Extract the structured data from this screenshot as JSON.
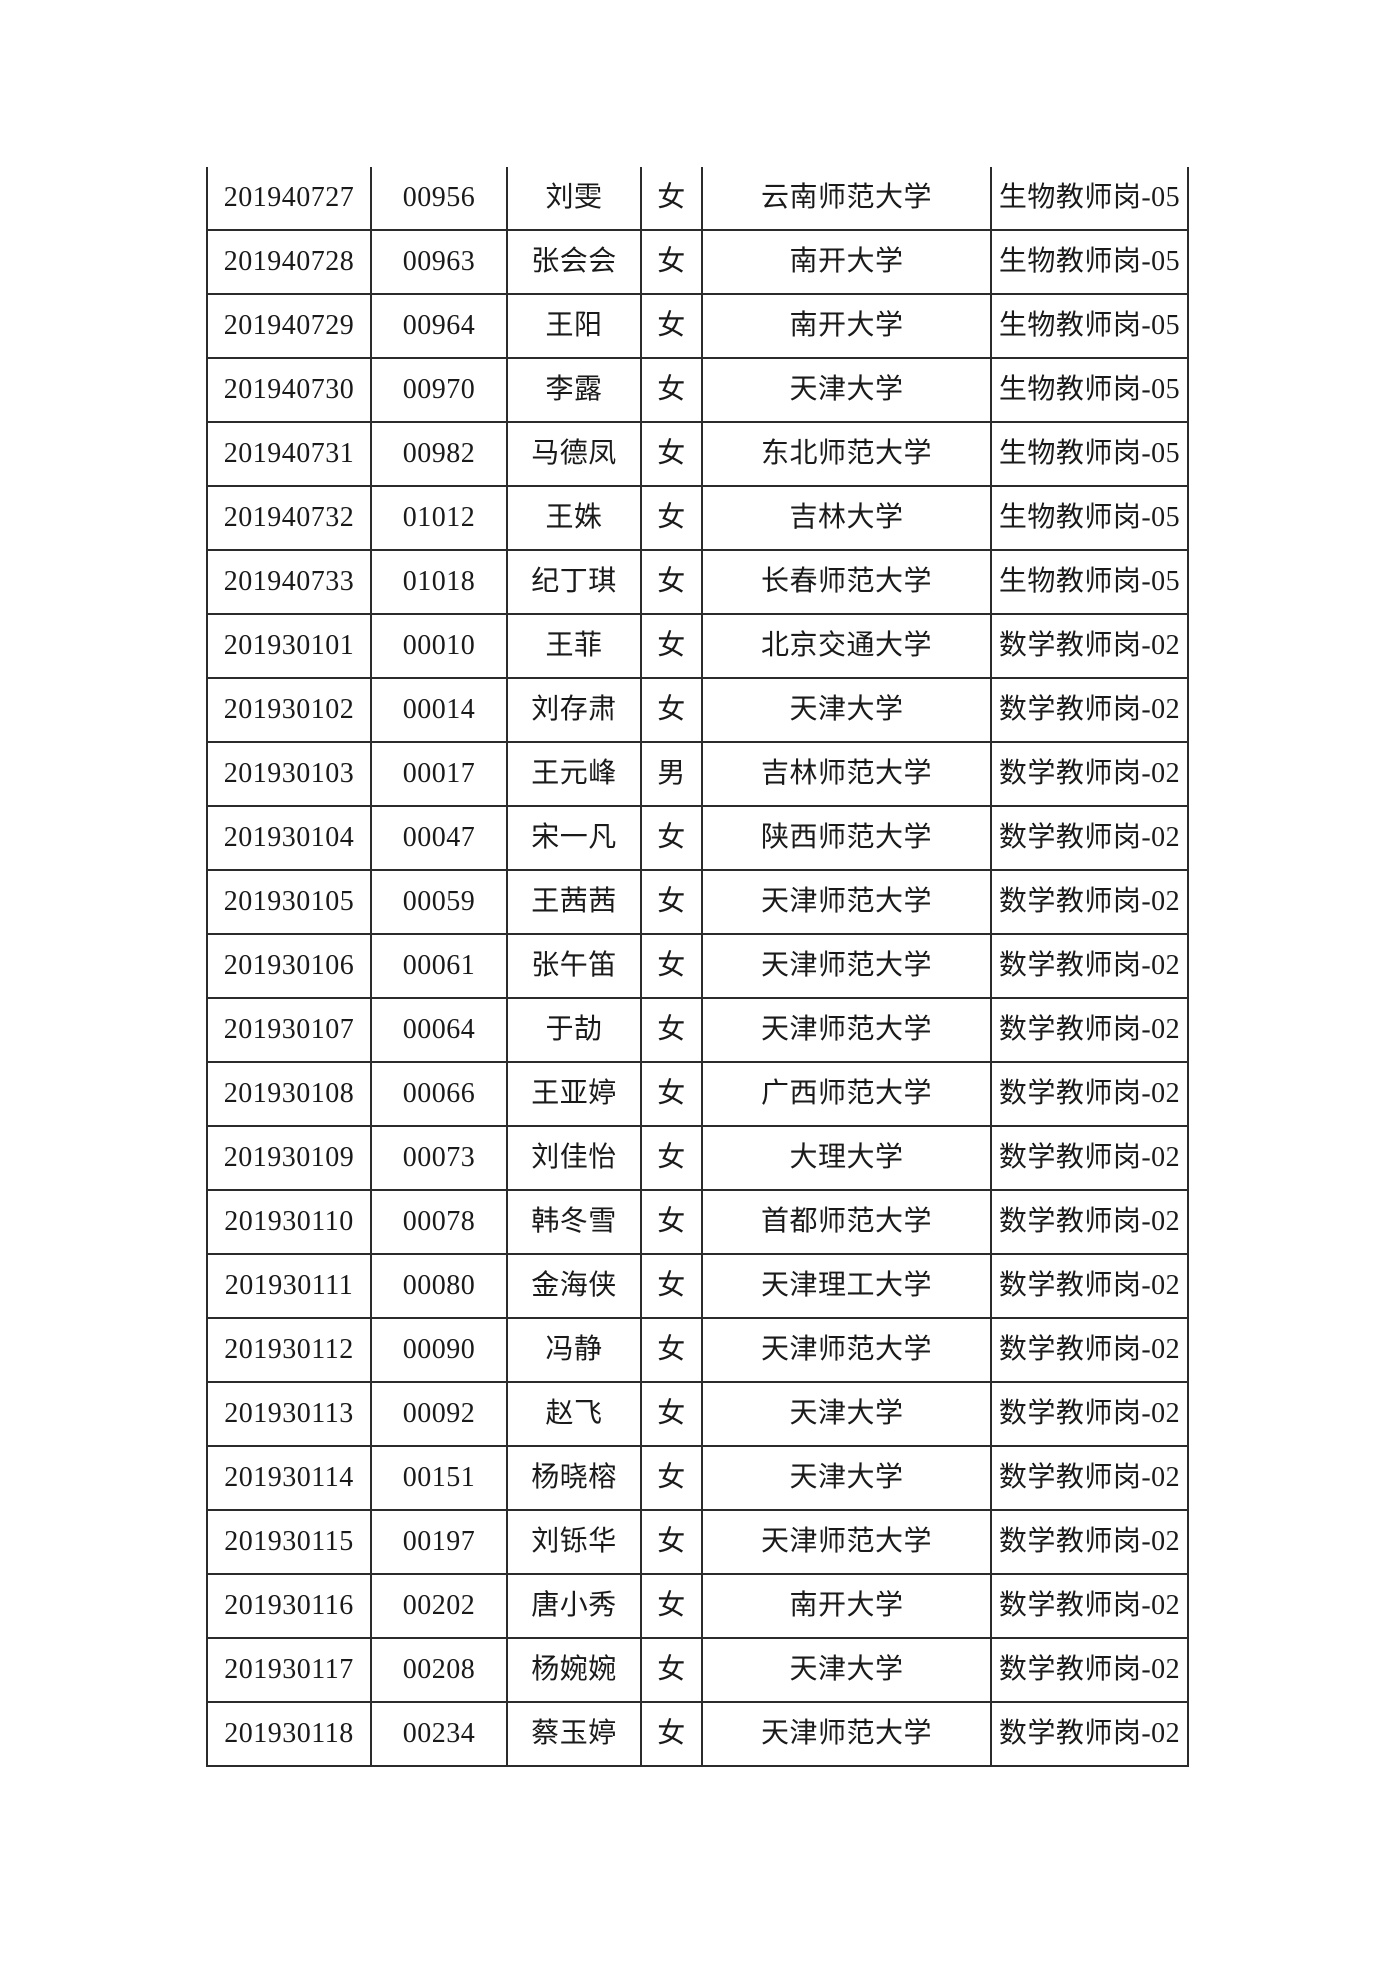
{
  "page": {
    "background_color": "#ffffff",
    "text_color": "#1a1a1a",
    "table_border_color": "#2b2b2b"
  },
  "table": {
    "rows": [
      {
        "exam_id": "201940727",
        "code": "00956",
        "name": "刘雯",
        "gender": "女",
        "university": "云南师范大学",
        "position": "生物教师岗-05"
      },
      {
        "exam_id": "201940728",
        "code": "00963",
        "name": "张会会",
        "gender": "女",
        "university": "南开大学",
        "position": "生物教师岗-05"
      },
      {
        "exam_id": "201940729",
        "code": "00964",
        "name": "王阳",
        "gender": "女",
        "university": "南开大学",
        "position": "生物教师岗-05"
      },
      {
        "exam_id": "201940730",
        "code": "00970",
        "name": "李露",
        "gender": "女",
        "university": "天津大学",
        "position": "生物教师岗-05"
      },
      {
        "exam_id": "201940731",
        "code": "00982",
        "name": "马德凤",
        "gender": "女",
        "university": "东北师范大学",
        "position": "生物教师岗-05"
      },
      {
        "exam_id": "201940732",
        "code": "01012",
        "name": "王姝",
        "gender": "女",
        "university": "吉林大学",
        "position": "生物教师岗-05"
      },
      {
        "exam_id": "201940733",
        "code": "01018",
        "name": "纪丁琪",
        "gender": "女",
        "university": "长春师范大学",
        "position": "生物教师岗-05"
      },
      {
        "exam_id": "201930101",
        "code": "00010",
        "name": "王菲",
        "gender": "女",
        "university": "北京交通大学",
        "position": "数学教师岗-02"
      },
      {
        "exam_id": "201930102",
        "code": "00014",
        "name": "刘存肃",
        "gender": "女",
        "university": "天津大学",
        "position": "数学教师岗-02"
      },
      {
        "exam_id": "201930103",
        "code": "00017",
        "name": "王元峰",
        "gender": "男",
        "university": "吉林师范大学",
        "position": "数学教师岗-02"
      },
      {
        "exam_id": "201930104",
        "code": "00047",
        "name": "宋一凡",
        "gender": "女",
        "university": "陕西师范大学",
        "position": "数学教师岗-02"
      },
      {
        "exam_id": "201930105",
        "code": "00059",
        "name": "王茜茜",
        "gender": "女",
        "university": "天津师范大学",
        "position": "数学教师岗-02"
      },
      {
        "exam_id": "201930106",
        "code": "00061",
        "name": "张午笛",
        "gender": "女",
        "university": "天津师范大学",
        "position": "数学教师岗-02"
      },
      {
        "exam_id": "201930107",
        "code": "00064",
        "name": "于劼",
        "gender": "女",
        "university": "天津师范大学",
        "position": "数学教师岗-02"
      },
      {
        "exam_id": "201930108",
        "code": "00066",
        "name": "王亚婷",
        "gender": "女",
        "university": "广西师范大学",
        "position": "数学教师岗-02"
      },
      {
        "exam_id": "201930109",
        "code": "00073",
        "name": "刘佳怡",
        "gender": "女",
        "university": "大理大学",
        "position": "数学教师岗-02"
      },
      {
        "exam_id": "201930110",
        "code": "00078",
        "name": "韩冬雪",
        "gender": "女",
        "university": "首都师范大学",
        "position": "数学教师岗-02"
      },
      {
        "exam_id": "201930111",
        "code": "00080",
        "name": "金海侠",
        "gender": "女",
        "university": "天津理工大学",
        "position": "数学教师岗-02"
      },
      {
        "exam_id": "201930112",
        "code": "00090",
        "name": "冯静",
        "gender": "女",
        "university": "天津师范大学",
        "position": "数学教师岗-02"
      },
      {
        "exam_id": "201930113",
        "code": "00092",
        "name": "赵飞",
        "gender": "女",
        "university": "天津大学",
        "position": "数学教师岗-02"
      },
      {
        "exam_id": "201930114",
        "code": "00151",
        "name": "杨晓榕",
        "gender": "女",
        "university": "天津大学",
        "position": "数学教师岗-02"
      },
      {
        "exam_id": "201930115",
        "code": "00197",
        "name": "刘铄华",
        "gender": "女",
        "university": "天津师范大学",
        "position": "数学教师岗-02"
      },
      {
        "exam_id": "201930116",
        "code": "00202",
        "name": "唐小秀",
        "gender": "女",
        "university": "南开大学",
        "position": "数学教师岗-02"
      },
      {
        "exam_id": "201930117",
        "code": "00208",
        "name": "杨婉婉",
        "gender": "女",
        "university": "天津大学",
        "position": "数学教师岗-02"
      },
      {
        "exam_id": "201930118",
        "code": "00234",
        "name": "蔡玉婷",
        "gender": "女",
        "university": "天津师范大学",
        "position": "数学教师岗-02"
      }
    ]
  }
}
